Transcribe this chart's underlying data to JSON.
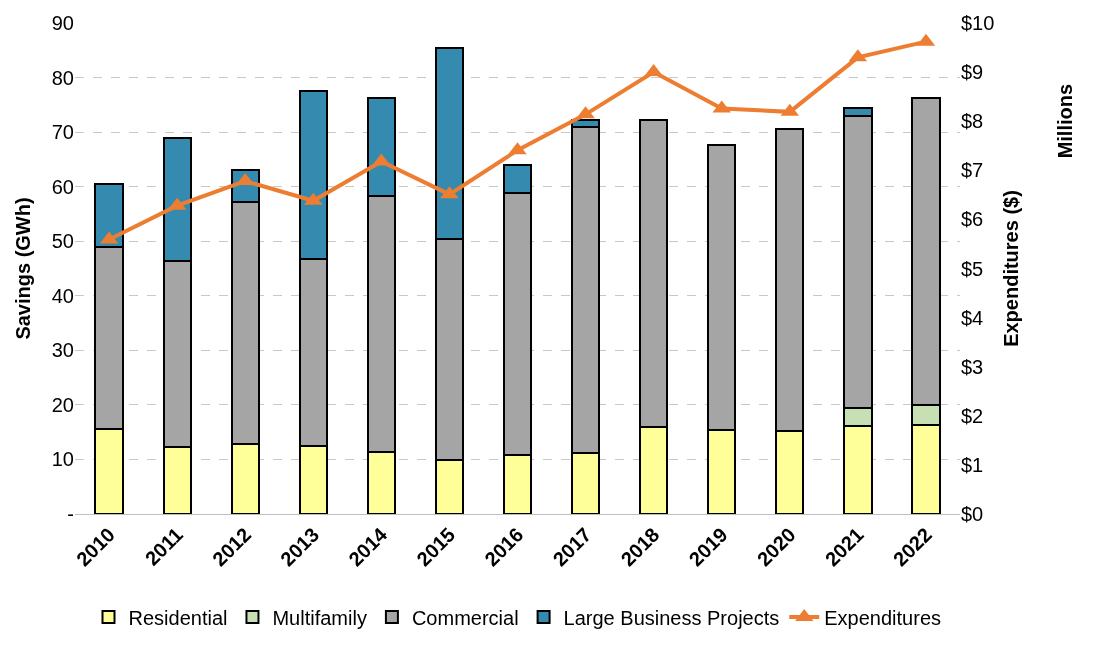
{
  "chart_data": {
    "type": "bar",
    "stacked": true,
    "ylabel": "Savings (GWh)",
    "y2label": "Expenditures ($)",
    "annotations": [
      "Millions"
    ],
    "categories": [
      "2010",
      "2011",
      "2012",
      "2013",
      "2014",
      "2015",
      "2016",
      "2017",
      "2018",
      "2019",
      "2020",
      "2021",
      "2022"
    ],
    "series": [
      {
        "name": "Residential",
        "color": "#ffff99",
        "values": [
          15.6,
          12.3,
          12.9,
          12.5,
          11.4,
          9.9,
          10.8,
          11.1,
          15.9,
          15.4,
          15.3,
          16.2,
          16.3
        ]
      },
      {
        "name": "Multifamily",
        "color": "#c6e0b4",
        "values": [
          null,
          null,
          null,
          null,
          null,
          null,
          null,
          null,
          null,
          null,
          null,
          3.2,
          3.7
        ]
      },
      {
        "name": "Commercial",
        "color": "#a5a5a5",
        "values": [
          33.3,
          34.1,
          44.3,
          34.2,
          46.8,
          40.5,
          48.1,
          59.9,
          56.4,
          52.2,
          55.3,
          53.5,
          56.3
        ]
      },
      {
        "name": "Large Business Projects",
        "color": "#358ab0",
        "values": [
          11.5,
          22.6,
          5.9,
          30.8,
          18.1,
          35.1,
          5.0,
          1.3,
          null,
          null,
          null,
          1.5,
          null
        ]
      },
      {
        "name": "Expenditures",
        "type": "line",
        "axis": "y2",
        "marker": "triangle",
        "color": "#ed7d31",
        "values": [
          5.59,
          6.28,
          6.78,
          6.38,
          7.18,
          6.51,
          7.41,
          8.14,
          9.0,
          8.26,
          8.19,
          9.3,
          9.62
        ]
      }
    ],
    "ylim": [
      0,
      90
    ],
    "yticks": [
      {
        "value": 0,
        "label": "-"
      },
      10,
      20,
      30,
      40,
      50,
      60,
      70,
      80,
      90
    ],
    "y2lim": [
      0,
      10
    ],
    "y2ticks": [
      {
        "value": 0,
        "label": "$0"
      },
      {
        "value": 1,
        "label": "$1"
      },
      {
        "value": 2,
        "label": "$2"
      },
      {
        "value": 3,
        "label": "$3"
      },
      {
        "value": 4,
        "label": "$4"
      },
      {
        "value": 5,
        "label": "$5"
      },
      {
        "value": 6,
        "label": "$6"
      },
      {
        "value": 7,
        "label": "$7"
      },
      {
        "value": 8,
        "label": "$8"
      },
      {
        "value": 9,
        "label": "$9"
      },
      {
        "value": 10,
        "label": "$10"
      }
    ],
    "grid": "y",
    "legend": "bottom"
  }
}
